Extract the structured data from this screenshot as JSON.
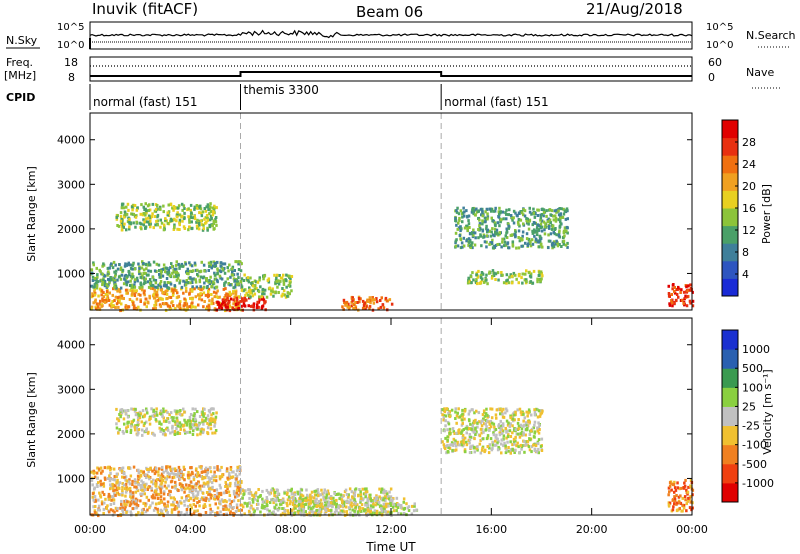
{
  "header": {
    "station": "Inuvik (fitACF)",
    "beam": "Beam 06",
    "date": "21/Aug/2018"
  },
  "noise_panel": {
    "left_label": "N.Sky",
    "right_label": "N.Search",
    "left_ticks": [
      "10^5",
      "10^0"
    ],
    "right_ticks": [
      "10^5",
      "10^0"
    ]
  },
  "freq_panel": {
    "left_label_1": "Freq.",
    "left_label_2": "[MHz]",
    "left_ticks": [
      "18",
      "8"
    ],
    "right_label": "Nave",
    "right_ticks": [
      "60",
      "0"
    ]
  },
  "cpid_panel": {
    "label": "CPID",
    "segments": [
      {
        "name": "normal (fast) 151",
        "start_hour": 0,
        "end_hour": 6
      },
      {
        "name": "themis 3300",
        "start_hour": 6,
        "end_hour": 14
      },
      {
        "name": "normal (fast) 151",
        "start_hour": 14,
        "end_hour": 24
      }
    ]
  },
  "chart_data": [
    {
      "type": "heatmap",
      "title": "",
      "xlabel": "",
      "ylabel": "Slant Range [km]",
      "y_ticks": [
        1000,
        2000,
        3000,
        4000
      ],
      "ylim": [
        180,
        4600
      ],
      "xlim_hours": [
        0,
        24
      ],
      "colorbar": {
        "label": "Power [dB]",
        "ticks": [
          "4",
          "8",
          "12",
          "16",
          "20",
          "24",
          "28"
        ],
        "colors": [
          "#1a2bd6",
          "#2e55c0",
          "#3f7f9a",
          "#4aa068",
          "#8cc43a",
          "#e8d020",
          "#f0a020",
          "#f07010",
          "#e83010",
          "#e00000"
        ]
      },
      "regions": [
        {
          "hours": [
            0,
            6
          ],
          "range_km": [
            200,
            700
          ],
          "value_db": 20
        },
        {
          "hours": [
            0,
            6
          ],
          "range_km": [
            700,
            1300
          ],
          "value_db": 10
        },
        {
          "hours": [
            1,
            5
          ],
          "range_km": [
            2000,
            2600
          ],
          "value_db": 12
        },
        {
          "hours": [
            5,
            7
          ],
          "range_km": [
            200,
            500
          ],
          "value_db": 28
        },
        {
          "hours": [
            6,
            8
          ],
          "range_km": [
            500,
            1000
          ],
          "value_db": 14
        },
        {
          "hours": [
            10,
            12
          ],
          "range_km": [
            200,
            500
          ],
          "value_db": 22
        },
        {
          "hours": [
            14.5,
            19
          ],
          "range_km": [
            1600,
            2500
          ],
          "value_db": 10
        },
        {
          "hours": [
            15,
            18
          ],
          "range_km": [
            800,
            1100
          ],
          "value_db": 12
        },
        {
          "hours": [
            23,
            24
          ],
          "range_km": [
            300,
            800
          ],
          "value_db": 24
        }
      ]
    },
    {
      "type": "heatmap",
      "title": "",
      "xlabel": "Time UT",
      "ylabel": "Slant Range [km]",
      "y_ticks": [
        1000,
        2000,
        3000,
        4000
      ],
      "ylim": [
        180,
        4600
      ],
      "xlim_hours": [
        0,
        24
      ],
      "x_ticks": [
        "00:00",
        "04:00",
        "08:00",
        "12:00",
        "16:00",
        "20:00",
        "00:00"
      ],
      "colorbar": {
        "label": "Velocity [m s⁻¹]",
        "ticks": [
          "-1000",
          "-500",
          "-100",
          "-25",
          "25",
          "100",
          "500",
          "1000"
        ],
        "colors": [
          "#e00000",
          "#f04010",
          "#f08020",
          "#f0c030",
          "#c0c0c0",
          "#8ad040",
          "#3a9a50",
          "#2a60b0",
          "#1a30d0"
        ]
      },
      "regions": [
        {
          "hours": [
            0,
            6
          ],
          "range_km": [
            200,
            1300
          ],
          "value_ms": -150
        },
        {
          "hours": [
            1,
            5
          ],
          "range_km": [
            2000,
            2600
          ],
          "value_ms": 0
        },
        {
          "hours": [
            6,
            12
          ],
          "range_km": [
            200,
            800
          ],
          "value_ms": 100
        },
        {
          "hours": [
            8,
            13
          ],
          "range_km": [
            200,
            600
          ],
          "value_ms": 0
        },
        {
          "hours": [
            14,
            18
          ],
          "range_km": [
            1600,
            2600
          ],
          "value_ms": 0
        },
        {
          "hours": [
            23,
            24
          ],
          "range_km": [
            300,
            1000
          ],
          "value_ms": -600
        }
      ]
    }
  ]
}
